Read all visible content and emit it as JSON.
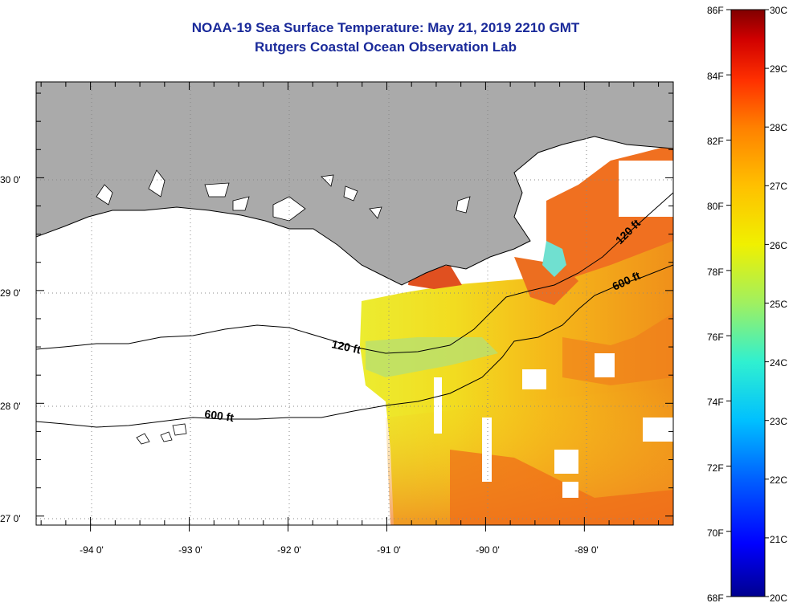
{
  "title": {
    "line1": "NOAA-19 Sea Surface Temperature:  May 21, 2019 2210 GMT",
    "line2": "Rutgers Coastal Ocean Observation Lab"
  },
  "map": {
    "lon_range": [
      -94.55,
      -88.1
    ],
    "lat_range": [
      26.92,
      30.85
    ],
    "lon_ticks": [
      {
        "value": -94,
        "label": "-94 0'"
      },
      {
        "value": -93,
        "label": "-93 0'"
      },
      {
        "value": -92,
        "label": "-92 0'"
      },
      {
        "value": -91,
        "label": "-91 0'"
      },
      {
        "value": -90,
        "label": "-90 0'"
      },
      {
        "value": -89,
        "label": "-89 0'"
      }
    ],
    "lat_ticks": [
      {
        "value": 30,
        "label": "30 0'"
      },
      {
        "value": 29,
        "label": "29 0'"
      },
      {
        "value": 28,
        "label": "28 0'"
      },
      {
        "value": 27,
        "label": "27 0'"
      }
    ],
    "contour_labels": [
      {
        "text": "120 ft",
        "lon": -91.3,
        "lat": 28.5
      },
      {
        "text": "600 ft",
        "lon": -92.85,
        "lat": 27.95
      },
      {
        "text": "120 ft",
        "lon": -88.6,
        "lat": 29.55
      },
      {
        "text": "600 ft",
        "lon": -88.5,
        "lat": 29.08
      }
    ],
    "colors": {
      "land": "#aaaaaa",
      "gridline": "#888888"
    }
  },
  "colorbar": {
    "fahrenheit_labels": [
      "86F",
      "84F",
      "82F",
      "80F",
      "78F",
      "76F",
      "74F",
      "72F",
      "70F",
      "68F"
    ],
    "celsius_labels": [
      "30C",
      "29C",
      "28C",
      "27C",
      "26C",
      "25C",
      "24C",
      "23C",
      "22C",
      "21C",
      "20C"
    ],
    "range_c": [
      20,
      30
    ],
    "colors": [
      "#00008f",
      "#0000ff",
      "#0060ff",
      "#00c0ff",
      "#30f0d0",
      "#a0f060",
      "#f0f000",
      "#ffc000",
      "#ff8000",
      "#ff3000",
      "#d00000",
      "#800000"
    ]
  }
}
